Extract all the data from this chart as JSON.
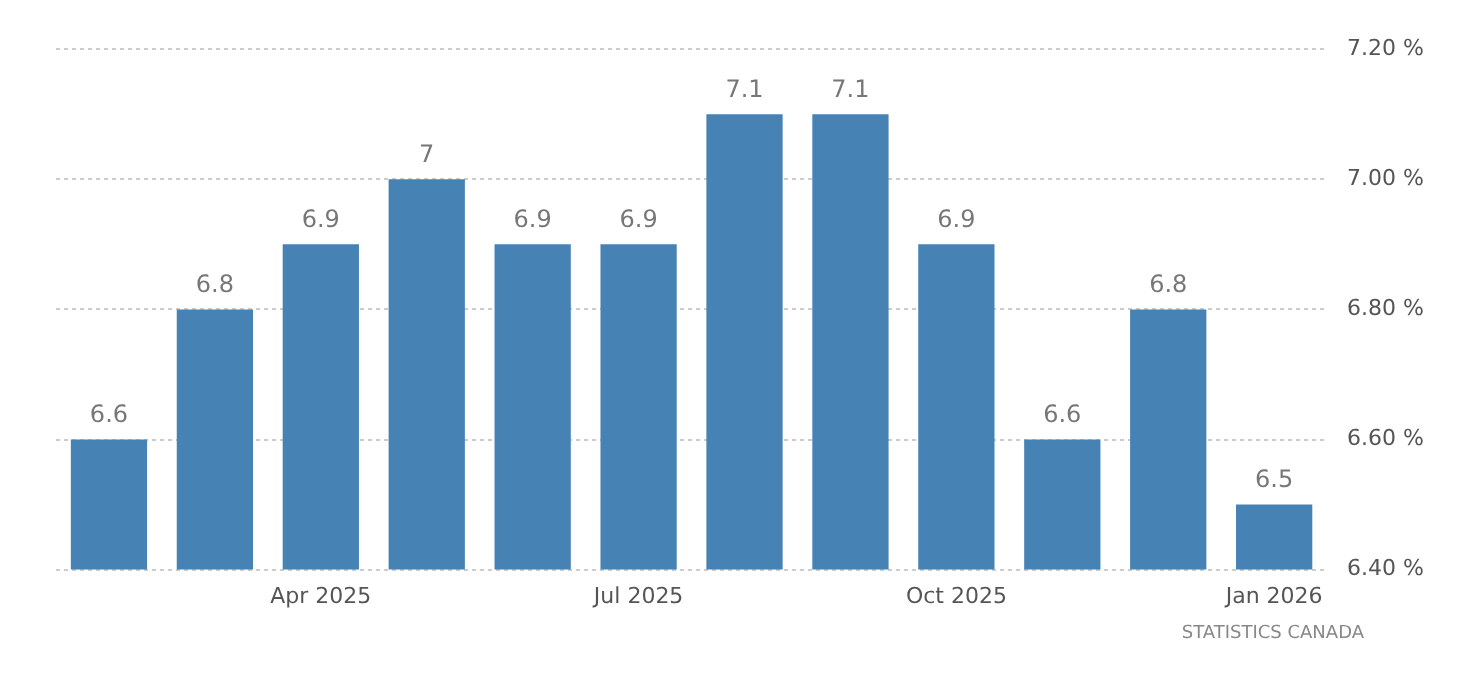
{
  "chart_data": {
    "type": "bar",
    "categories": [
      null,
      null,
      "Apr 2025",
      null,
      null,
      "Jul 2025",
      null,
      null,
      "Oct 2025",
      null,
      null,
      "Jan 2026"
    ],
    "values": [
      6.6,
      6.8,
      6.9,
      7,
      6.9,
      6.9,
      7.1,
      7.1,
      6.9,
      6.6,
      6.8,
      6.5
    ],
    "color": "#4682b4",
    "ylim": [
      6.4,
      7.2
    ],
    "yticks": [
      {
        "value": 6.4,
        "label": "6.40 %"
      },
      {
        "value": 6.6,
        "label": "6.60 %"
      },
      {
        "value": 6.8,
        "label": "6.80 %"
      },
      {
        "value": 7.0,
        "label": "7.00 %"
      },
      {
        "value": 7.2,
        "label": "7.20 %"
      }
    ],
    "grid": "y",
    "data_labels": true,
    "legend": false,
    "annotations": [
      "STATISTICS CANADA"
    ]
  }
}
